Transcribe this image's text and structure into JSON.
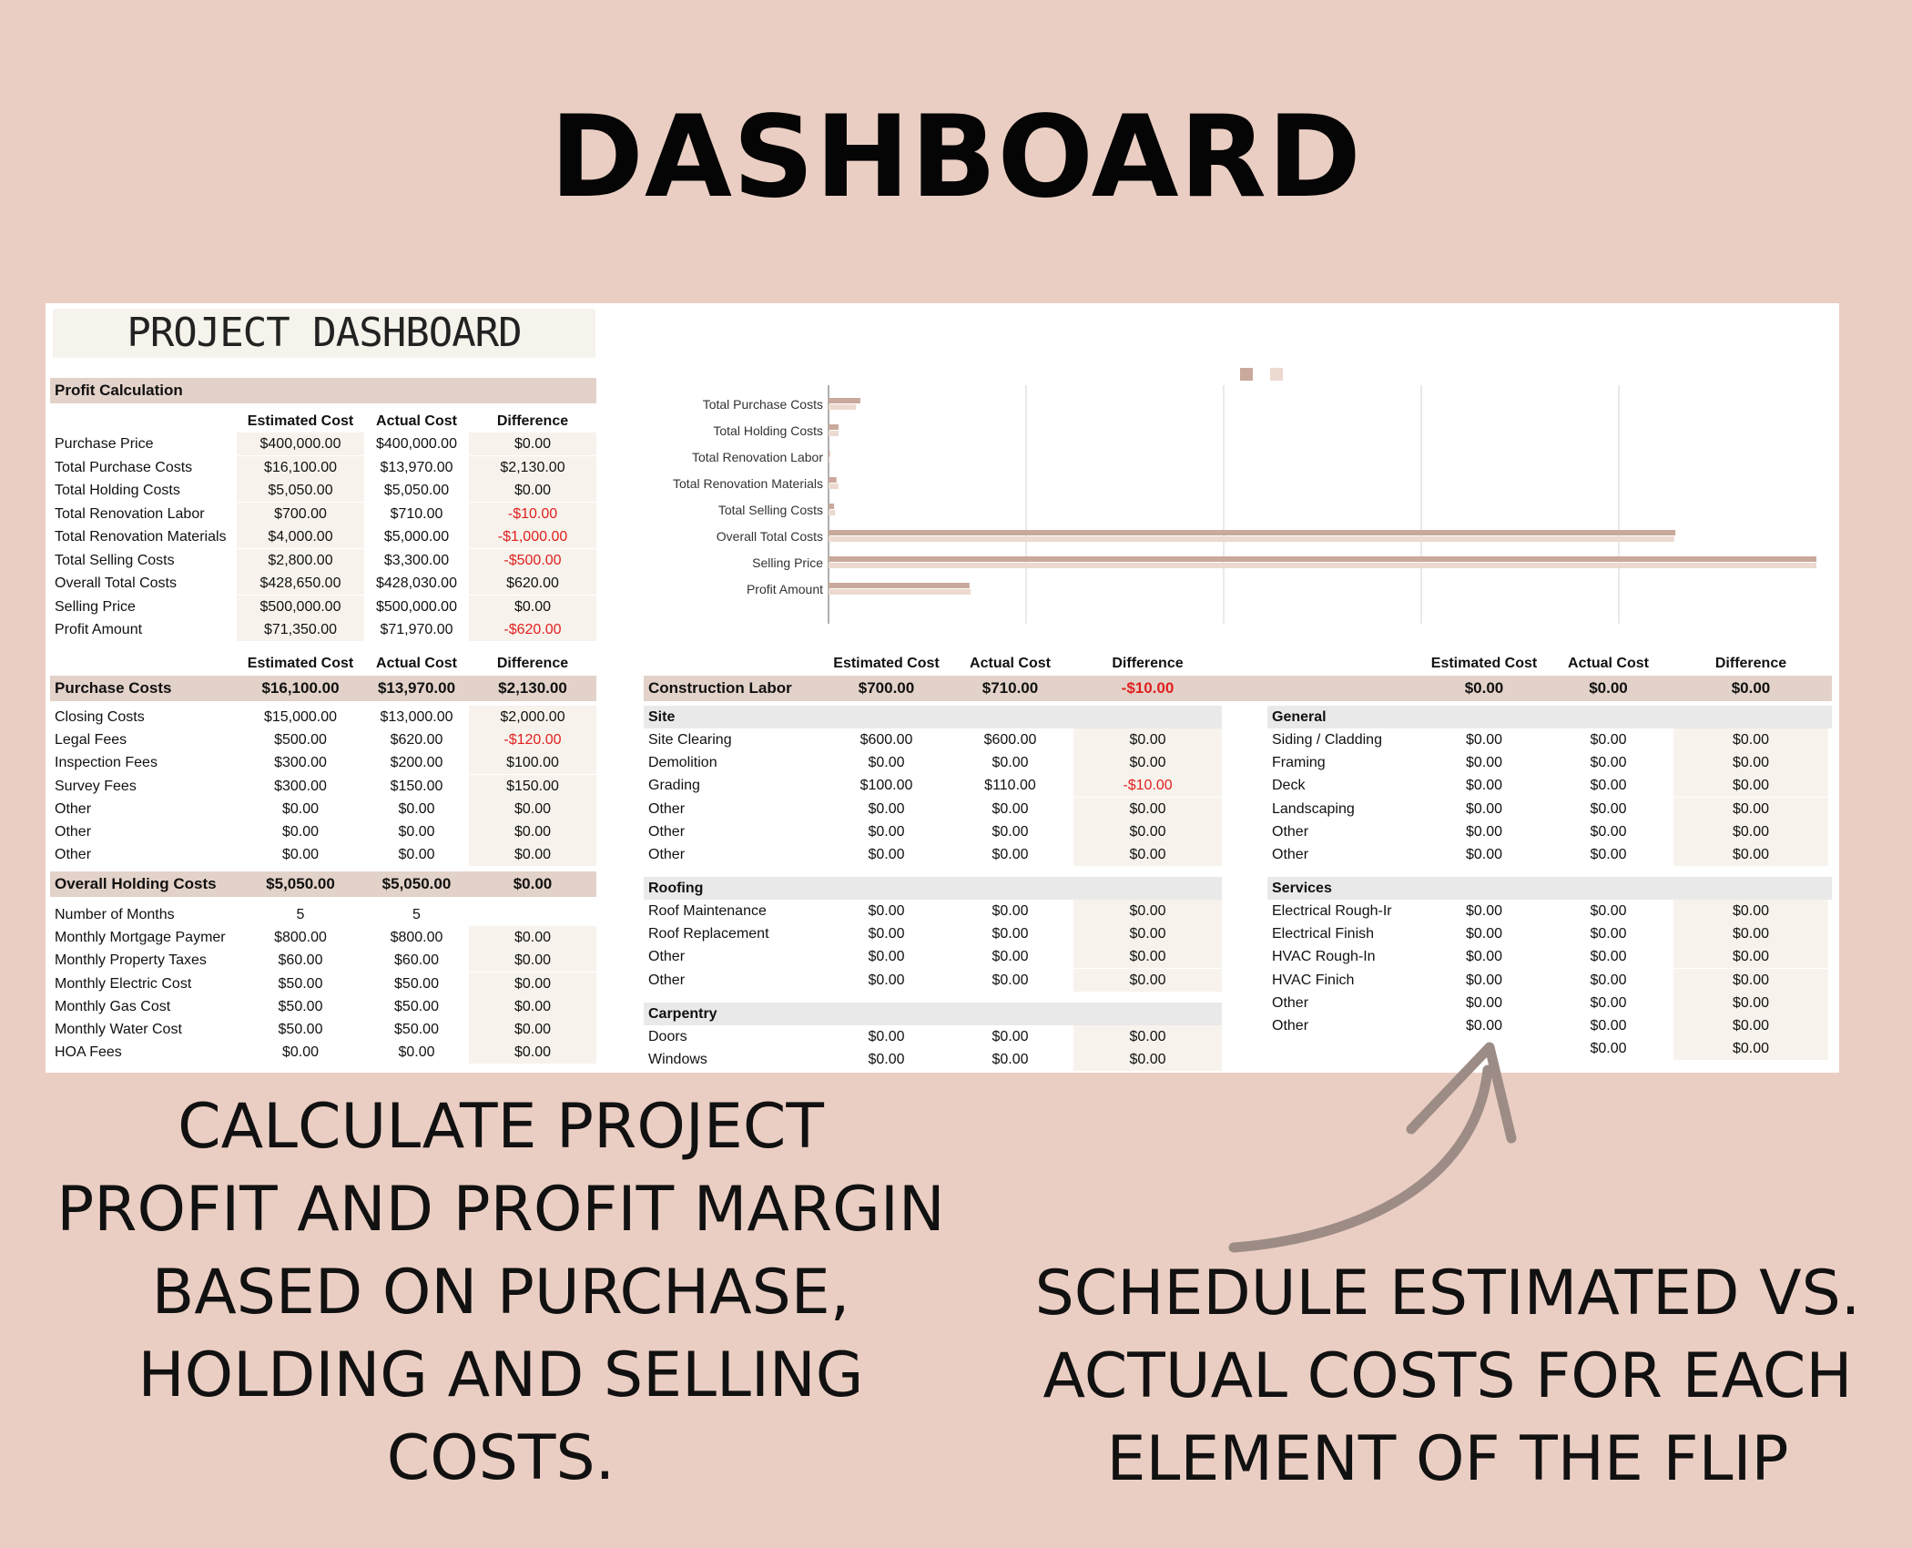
{
  "page_title": "DASHBOARD",
  "sheet_title": "PROJECT DASHBOARD",
  "col_headers": {
    "est": "Estimated Cost",
    "act": "Actual Cost",
    "diff": "Difference"
  },
  "profit": {
    "title": "Profit Calculation",
    "rows": [
      {
        "label": "Purchase Price",
        "est": "$400,000.00",
        "act": "$400,000.00",
        "diff": "$0.00"
      },
      {
        "label": "Total Purchase Costs",
        "est": "$16,100.00",
        "act": "$13,970.00",
        "diff": "$2,130.00"
      },
      {
        "label": "Total Holding Costs",
        "est": "$5,050.00",
        "act": "$5,050.00",
        "diff": "$0.00"
      },
      {
        "label": "Total Renovation Labor",
        "est": "$700.00",
        "act": "$710.00",
        "diff": "-$10.00"
      },
      {
        "label": "Total Renovation Materials",
        "est": "$4,000.00",
        "act": "$5,000.00",
        "diff": "-$1,000.00"
      },
      {
        "label": "Total Selling Costs",
        "est": "$2,800.00",
        "act": "$3,300.00",
        "diff": "-$500.00"
      },
      {
        "label": "Overall Total Costs",
        "est": "$428,650.00",
        "act": "$428,030.00",
        "diff": "$620.00"
      },
      {
        "label": "Selling Price",
        "est": "$500,000.00",
        "act": "$500,000.00",
        "diff": "$0.00"
      },
      {
        "label": "Profit Amount",
        "est": "$71,350.00",
        "act": "$71,970.00",
        "diff": "-$620.00"
      }
    ]
  },
  "purchase": {
    "title": "Purchase Costs",
    "est": "$16,100.00",
    "act": "$13,970.00",
    "diff": "$2,130.00",
    "rows": [
      {
        "label": "Closing Costs",
        "est": "$15,000.00",
        "act": "$13,000.00",
        "diff": "$2,000.00"
      },
      {
        "label": "Legal Fees",
        "est": "$500.00",
        "act": "$620.00",
        "diff": "-$120.00"
      },
      {
        "label": "Inspection Fees",
        "est": "$300.00",
        "act": "$200.00",
        "diff": "$100.00"
      },
      {
        "label": "Survey Fees",
        "est": "$300.00",
        "act": "$150.00",
        "diff": "$150.00"
      },
      {
        "label": "Other",
        "est": "$0.00",
        "act": "$0.00",
        "diff": "$0.00"
      },
      {
        "label": "Other",
        "est": "$0.00",
        "act": "$0.00",
        "diff": "$0.00"
      },
      {
        "label": "Other",
        "est": "$0.00",
        "act": "$0.00",
        "diff": "$0.00"
      }
    ]
  },
  "holding": {
    "title": "Overall Holding Costs",
    "est": "$5,050.00",
    "act": "$5,050.00",
    "diff": "$0.00",
    "rows": [
      {
        "label": "Number of Months",
        "est": "5",
        "act": "5",
        "diff": ""
      },
      {
        "label": "Monthly Mortgage Paymer",
        "est": "$800.00",
        "act": "$800.00",
        "diff": "$0.00"
      },
      {
        "label": "Monthly Property Taxes",
        "est": "$60.00",
        "act": "$60.00",
        "diff": "$0.00"
      },
      {
        "label": "Monthly Electric Cost",
        "est": "$50.00",
        "act": "$50.00",
        "diff": "$0.00"
      },
      {
        "label": "Monthly Gas Cost",
        "est": "$50.00",
        "act": "$50.00",
        "diff": "$0.00"
      },
      {
        "label": "Monthly Water Cost",
        "est": "$50.00",
        "act": "$50.00",
        "diff": "$0.00"
      },
      {
        "label": "HOA Fees",
        "est": "$0.00",
        "act": "$0.00",
        "diff": "$0.00"
      }
    ]
  },
  "labor": {
    "title": "Construction Labor",
    "est": "$700.00",
    "act": "$710.00",
    "diff": "-$10.00",
    "right_totals": {
      "est": "$0.00",
      "act": "$0.00",
      "diff": "$0.00"
    },
    "left_groups": [
      {
        "name": "Site",
        "rows": [
          {
            "label": "Site Clearing",
            "est": "$600.00",
            "act": "$600.00",
            "diff": "$0.00"
          },
          {
            "label": "Demolition",
            "est": "$0.00",
            "act": "$0.00",
            "diff": "$0.00"
          },
          {
            "label": "Grading",
            "est": "$100.00",
            "act": "$110.00",
            "diff": "-$10.00"
          },
          {
            "label": "Other",
            "est": "$0.00",
            "act": "$0.00",
            "diff": "$0.00"
          },
          {
            "label": "Other",
            "est": "$0.00",
            "act": "$0.00",
            "diff": "$0.00"
          },
          {
            "label": "Other",
            "est": "$0.00",
            "act": "$0.00",
            "diff": "$0.00"
          }
        ]
      },
      {
        "name": "Roofing",
        "rows": [
          {
            "label": "Roof Maintenance",
            "est": "$0.00",
            "act": "$0.00",
            "diff": "$0.00"
          },
          {
            "label": "Roof Replacement",
            "est": "$0.00",
            "act": "$0.00",
            "diff": "$0.00"
          },
          {
            "label": "Other",
            "est": "$0.00",
            "act": "$0.00",
            "diff": "$0.00"
          },
          {
            "label": "Other",
            "est": "$0.00",
            "act": "$0.00",
            "diff": "$0.00"
          }
        ]
      },
      {
        "name": "Carpentry",
        "rows": [
          {
            "label": "Doors",
            "est": "$0.00",
            "act": "$0.00",
            "diff": "$0.00"
          },
          {
            "label": "Windows",
            "est": "$0.00",
            "act": "$0.00",
            "diff": "$0.00"
          }
        ]
      }
    ],
    "right_groups": [
      {
        "name": "General",
        "rows": [
          {
            "label": "Siding / Cladding",
            "est": "$0.00",
            "act": "$0.00",
            "diff": "$0.00"
          },
          {
            "label": "Framing",
            "est": "$0.00",
            "act": "$0.00",
            "diff": "$0.00"
          },
          {
            "label": "Deck",
            "est": "$0.00",
            "act": "$0.00",
            "diff": "$0.00"
          },
          {
            "label": "Landscaping",
            "est": "$0.00",
            "act": "$0.00",
            "diff": "$0.00"
          },
          {
            "label": "Other",
            "est": "$0.00",
            "act": "$0.00",
            "diff": "$0.00"
          },
          {
            "label": "Other",
            "est": "$0.00",
            "act": "$0.00",
            "diff": "$0.00"
          }
        ]
      },
      {
        "name": "Services",
        "rows": [
          {
            "label": "Electrical Rough-Ir",
            "est": "$0.00",
            "act": "$0.00",
            "diff": "$0.00"
          },
          {
            "label": "Electrical Finish",
            "est": "$0.00",
            "act": "$0.00",
            "diff": "$0.00"
          },
          {
            "label": "HVAC Rough-In",
            "est": "$0.00",
            "act": "$0.00",
            "diff": "$0.00"
          },
          {
            "label": "HVAC Finich",
            "est": "$0.00",
            "act": "$0.00",
            "diff": "$0.00"
          },
          {
            "label": "Other",
            "est": "$0.00",
            "act": "$0.00",
            "diff": "$0.00"
          },
          {
            "label": "Other",
            "est": "$0.00",
            "act": "$0.00",
            "diff": "$0.00"
          },
          {
            "label": "",
            "est": "",
            "act": "$0.00",
            "diff": "$0.00"
          }
        ]
      }
    ]
  },
  "chart_data": {
    "type": "bar",
    "orientation": "horizontal",
    "categories": [
      "Total Purchase Costs",
      "Total Holding Costs",
      "Total Renovation Labor",
      "Total Renovation Materials",
      "Total Selling Costs",
      "Overall Total Costs",
      "Selling Price",
      "Profit Amount"
    ],
    "series": [
      {
        "values": [
          16100,
          5050,
          700,
          4000,
          2800,
          428650,
          500000,
          71350
        ],
        "color": "#c9a99b"
      },
      {
        "values": [
          13970,
          5050,
          710,
          5000,
          3300,
          428030,
          500000,
          71970
        ],
        "color": "#ecd9cf"
      }
    ],
    "xticks": [
      "$0.00",
      "$100,000.00",
      "$200,000.00",
      "$300,000.00",
      "$400,000.00"
    ],
    "xlim": [
      0,
      500000
    ],
    "grid": true,
    "legend": "top-center"
  },
  "caption_left": [
    "CALCULATE PROJECT",
    "PROFIT AND PROFIT MARGIN",
    "BASED ON PURCHASE,",
    "HOLDING AND SELLING",
    "COSTS."
  ],
  "caption_right": [
    "SCHEDULE ESTIMATED VS.",
    "ACTUAL COSTS FOR EACH",
    "ELEMENT OF THE FLIP"
  ],
  "colors": {
    "background": "#ebcec3",
    "band": "#e3d2c9",
    "negative": "#e02020",
    "arrow": "#9c8c85"
  }
}
